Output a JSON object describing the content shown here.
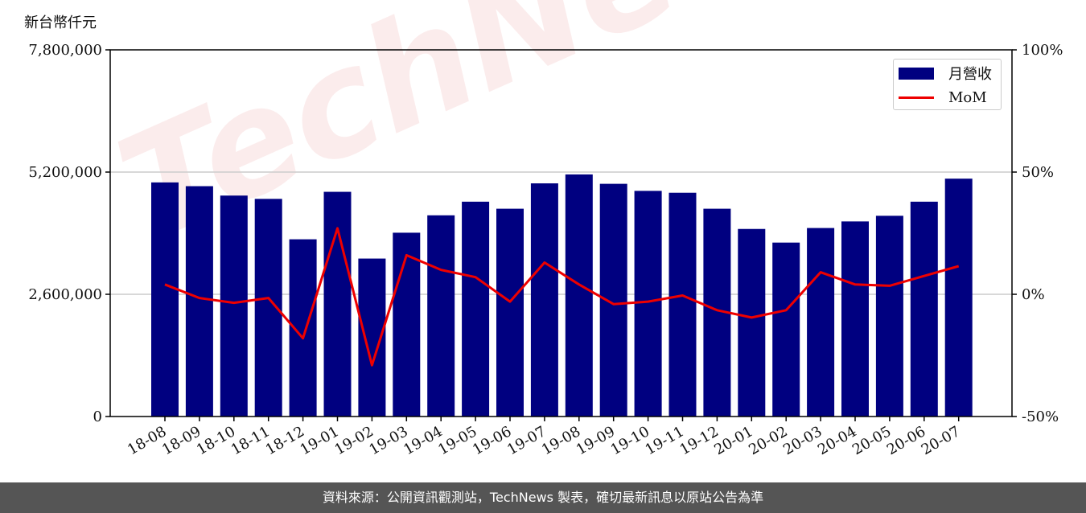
{
  "watermark": "TechNews",
  "chart_data": {
    "type": "bar",
    "unit_label": "新台幣仟元",
    "categories": [
      "18-08",
      "18-09",
      "18-10",
      "18-11",
      "18-12",
      "19-01",
      "19-02",
      "19-03",
      "19-04",
      "19-05",
      "19-06",
      "19-07",
      "19-08",
      "19-09",
      "19-10",
      "19-11",
      "19-12",
      "20-01",
      "20-02",
      "20-03",
      "20-04",
      "20-05",
      "20-06",
      "20-07"
    ],
    "series": [
      {
        "name": "月營收",
        "axis": "left",
        "type": "bar",
        "color": "#000080",
        "values": [
          4980000,
          4900000,
          4700000,
          4630000,
          3770000,
          4780000,
          3360000,
          3910000,
          4280000,
          4570000,
          4420000,
          4960000,
          5150000,
          4950000,
          4800000,
          4760000,
          4420000,
          3990000,
          3700000,
          4010000,
          4150000,
          4270000,
          4570000,
          5060000
        ]
      },
      {
        "name": "MoM",
        "axis": "right",
        "type": "line",
        "color": "#ee0000",
        "values": [
          4,
          -1.5,
          -3.5,
          -1.5,
          -18,
          27,
          -29,
          16,
          10,
          7,
          -3,
          13,
          4,
          -4,
          -3,
          -0.5,
          -6.5,
          -9.5,
          -6.5,
          9,
          4,
          3.5,
          7.5,
          11.5
        ]
      }
    ],
    "y_left": {
      "ylim": [
        0,
        7800000
      ],
      "ticks": [
        0,
        2600000,
        5200000,
        7800000
      ],
      "tick_labels": [
        "0",
        "2,600,000",
        "5,200,000",
        "7,800,000"
      ]
    },
    "y_right": {
      "ylim": [
        -50,
        100
      ],
      "ticks": [
        -50,
        0,
        50,
        100
      ],
      "tick_labels": [
        "-50%",
        "0%",
        "50%",
        "100%"
      ]
    },
    "grid": "horizontal",
    "legend": "top-right"
  },
  "footer": {
    "text": "資料來源：公開資訊觀測站，TechNews 製表，確切最新訊息以原站公告為準"
  }
}
